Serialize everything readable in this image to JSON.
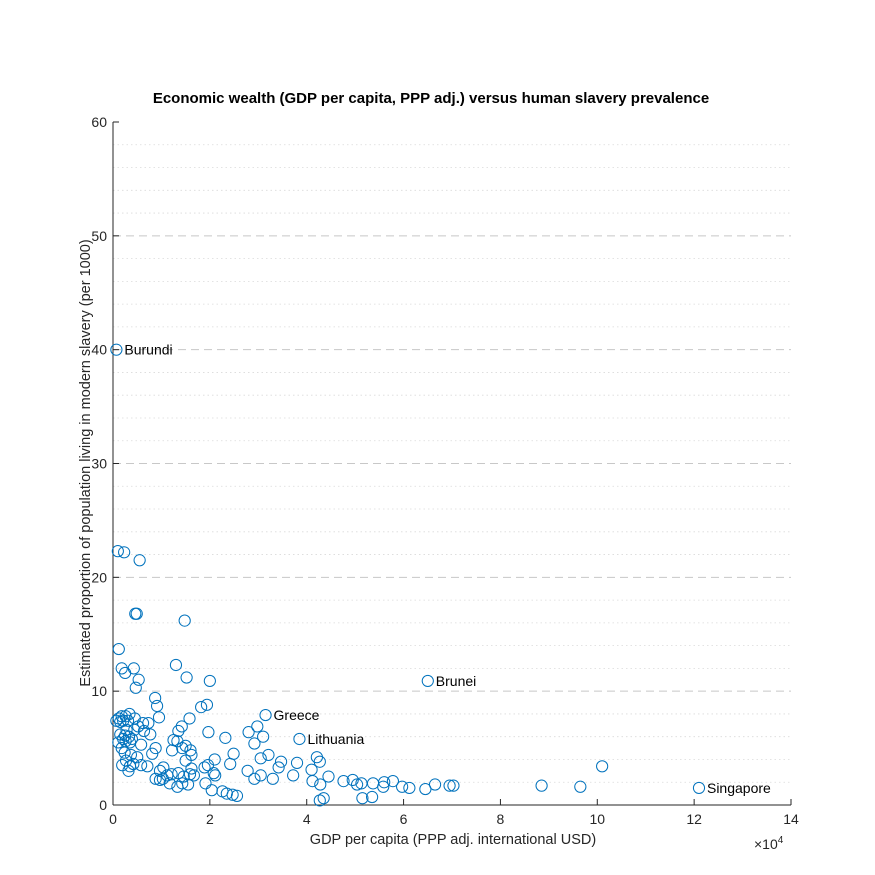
{
  "chart_data": {
    "type": "scatter",
    "title": "Economic wealth (GDP per capita, PPP adj.) versus human slavery prevalence",
    "xlabel": "GDP per capita (PPP adj. international USD)",
    "ylabel": "Estimated proportion of population living in modern slavery (per 1000)",
    "xlim": [
      0,
      140000
    ],
    "ylim": [
      0,
      60
    ],
    "x_tick_labels": [
      "0",
      "2",
      "4",
      "6",
      "8",
      "10",
      "12",
      "14"
    ],
    "x_tick_values": [
      0,
      20000,
      40000,
      60000,
      80000,
      100000,
      120000,
      140000
    ],
    "y_tick_labels": [
      "0",
      "10",
      "20",
      "30",
      "40",
      "50",
      "60"
    ],
    "y_tick_values": [
      0,
      10,
      20,
      30,
      40,
      50,
      60
    ],
    "x_exponent_label": "×10",
    "x_exponent_power": "4",
    "grid": "horizontal dotted minor and dashed major",
    "marker": "open circle",
    "color": "#0072BD",
    "annotations": [
      {
        "text": "Burundi",
        "x": 700,
        "y": 40.0
      },
      {
        "text": "Greece",
        "x": 31500,
        "y": 7.9
      },
      {
        "text": "Lithuania",
        "x": 38500,
        "y": 5.8
      },
      {
        "text": "Brunei",
        "x": 65000,
        "y": 10.9
      },
      {
        "text": "Singapore",
        "x": 121000,
        "y": 1.5
      }
    ],
    "points": [
      [
        700,
        40.0
      ],
      [
        1000,
        22.3
      ],
      [
        2300,
        22.2
      ],
      [
        5500,
        21.5
      ],
      [
        4600,
        16.8
      ],
      [
        4900,
        16.8
      ],
      [
        14800,
        16.2
      ],
      [
        1200,
        13.7
      ],
      [
        13000,
        12.3
      ],
      [
        1800,
        12.0
      ],
      [
        4300,
        12.0
      ],
      [
        2500,
        11.6
      ],
      [
        15200,
        11.2
      ],
      [
        5300,
        11.0
      ],
      [
        20000,
        10.9
      ],
      [
        65000,
        10.9
      ],
      [
        4700,
        10.3
      ],
      [
        8700,
        9.4
      ],
      [
        19400,
        8.8
      ],
      [
        9100,
        8.7
      ],
      [
        18200,
        8.6
      ],
      [
        3400,
        8.0
      ],
      [
        1800,
        7.8
      ],
      [
        2600,
        7.8
      ],
      [
        1200,
        7.6
      ],
      [
        4500,
        7.6
      ],
      [
        9500,
        7.7
      ],
      [
        15800,
        7.6
      ],
      [
        31500,
        7.9
      ],
      [
        700,
        7.4
      ],
      [
        1500,
        7.3
      ],
      [
        2100,
        7.4
      ],
      [
        3100,
        7.4
      ],
      [
        6200,
        7.2
      ],
      [
        7300,
        7.2
      ],
      [
        14200,
        6.9
      ],
      [
        29800,
        6.9
      ],
      [
        2800,
        6.6
      ],
      [
        4400,
        6.6
      ],
      [
        5200,
        6.9
      ],
      [
        6400,
        6.5
      ],
      [
        13500,
        6.5
      ],
      [
        28000,
        6.4
      ],
      [
        19700,
        6.4
      ],
      [
        1500,
        6.2
      ],
      [
        2500,
        6.1
      ],
      [
        3300,
        6.0
      ],
      [
        7700,
        6.2
      ],
      [
        31000,
        6.0
      ],
      [
        2100,
        5.8
      ],
      [
        3900,
        5.8
      ],
      [
        12500,
        5.7
      ],
      [
        23200,
        5.9
      ],
      [
        38500,
        5.8
      ],
      [
        2600,
        5.6
      ],
      [
        1100,
        5.5
      ],
      [
        3500,
        5.5
      ],
      [
        5800,
        5.3
      ],
      [
        13300,
        5.6
      ],
      [
        15000,
        5.2
      ],
      [
        1800,
        5.0
      ],
      [
        8800,
        5.0
      ],
      [
        14300,
        5.0
      ],
      [
        12200,
        4.8
      ],
      [
        16000,
        4.8
      ],
      [
        29200,
        5.4
      ],
      [
        24900,
        4.5
      ],
      [
        2400,
        4.6
      ],
      [
        3700,
        4.4
      ],
      [
        5000,
        4.2
      ],
      [
        8100,
        4.5
      ],
      [
        16200,
        4.4
      ],
      [
        32100,
        4.4
      ],
      [
        30500,
        4.1
      ],
      [
        42100,
        4.2
      ],
      [
        21000,
        4.0
      ],
      [
        2700,
        3.9
      ],
      [
        4200,
        3.6
      ],
      [
        5800,
        3.5
      ],
      [
        15000,
        3.9
      ],
      [
        24200,
        3.6
      ],
      [
        34700,
        3.8
      ],
      [
        38000,
        3.7
      ],
      [
        42700,
        3.8
      ],
      [
        1900,
        3.5
      ],
      [
        3500,
        3.4
      ],
      [
        7100,
        3.4
      ],
      [
        10400,
        3.3
      ],
      [
        16200,
        3.2
      ],
      [
        19600,
        3.5
      ],
      [
        34200,
        3.3
      ],
      [
        41000,
        3.1
      ],
      [
        101000,
        3.4
      ],
      [
        3200,
        3.0
      ],
      [
        9700,
        3.0
      ],
      [
        12100,
        2.7
      ],
      [
        13500,
        2.8
      ],
      [
        20800,
        2.8
      ],
      [
        27800,
        3.0
      ],
      [
        18900,
        3.3
      ],
      [
        30500,
        2.6
      ],
      [
        37200,
        2.6
      ],
      [
        44500,
        2.5
      ],
      [
        11200,
        2.6
      ],
      [
        8800,
        2.3
      ],
      [
        10300,
        2.3
      ],
      [
        14600,
        2.5
      ],
      [
        15900,
        2.7
      ],
      [
        16700,
        2.6
      ],
      [
        21100,
        2.6
      ],
      [
        9700,
        2.2
      ],
      [
        11700,
        1.9
      ],
      [
        14300,
        1.9
      ],
      [
        19100,
        1.9
      ],
      [
        29200,
        2.3
      ],
      [
        33000,
        2.3
      ],
      [
        41200,
        2.1
      ],
      [
        42800,
        1.8
      ],
      [
        47600,
        2.1
      ],
      [
        49500,
        2.2
      ],
      [
        51300,
        1.9
      ],
      [
        53700,
        1.9
      ],
      [
        56000,
        2.0
      ],
      [
        57800,
        2.1
      ],
      [
        13300,
        1.6
      ],
      [
        15500,
        1.8
      ],
      [
        50400,
        1.8
      ],
      [
        55800,
        1.6
      ],
      [
        59700,
        1.6
      ],
      [
        61200,
        1.5
      ],
      [
        64500,
        1.4
      ],
      [
        66500,
        1.8
      ],
      [
        69500,
        1.7
      ],
      [
        70300,
        1.7
      ],
      [
        88500,
        1.7
      ],
      [
        96500,
        1.6
      ],
      [
        121000,
        1.5
      ],
      [
        20400,
        1.3
      ],
      [
        22600,
        1.2
      ],
      [
        23500,
        1.0
      ],
      [
        24700,
        0.9
      ],
      [
        25600,
        0.8
      ],
      [
        43500,
        0.6
      ],
      [
        51500,
        0.6
      ],
      [
        53500,
        0.7
      ],
      [
        42700,
        0.4
      ]
    ]
  }
}
